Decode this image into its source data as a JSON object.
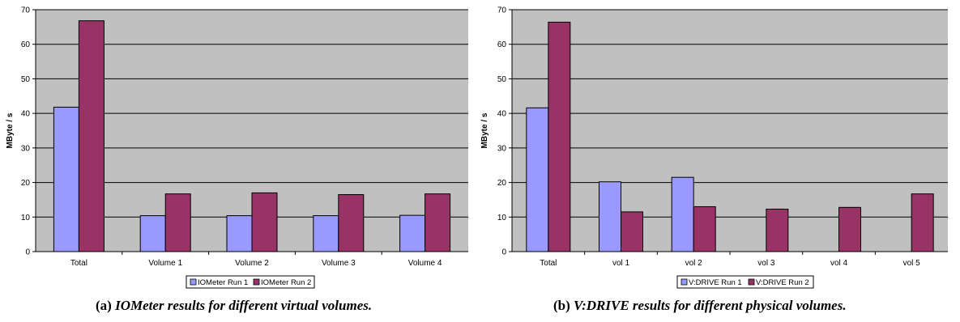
{
  "colors": {
    "plot_bg": "#c0c0c0",
    "run1": "#9999ff",
    "run2": "#993366",
    "grid": "#000000"
  },
  "captions": [
    {
      "label": "(a)",
      "text": "IOMeter results for different virtual volumes."
    },
    {
      "label": "(b)",
      "text": "V:DRIVE results for different physical volumes."
    }
  ],
  "chart_data": [
    {
      "type": "bar",
      "ylabel": "MByte / s",
      "ylim": [
        0,
        70
      ],
      "yticks": [
        0,
        10,
        20,
        30,
        40,
        50,
        60,
        70
      ],
      "grid": true,
      "legend_position": "bottom",
      "categories": [
        "Total",
        "Volume 1",
        "Volume 2",
        "Volume 3",
        "Volume 4"
      ],
      "series": [
        {
          "name": "IOMeter Run 1",
          "values": [
            41.8,
            10.4,
            10.4,
            10.4,
            10.5
          ]
        },
        {
          "name": "IOMeter Run 2",
          "values": [
            66.8,
            16.7,
            17.0,
            16.5,
            16.7
          ]
        }
      ]
    },
    {
      "type": "bar",
      "ylabel": "MByte / s",
      "ylim": [
        0,
        70
      ],
      "yticks": [
        0,
        10,
        20,
        30,
        40,
        50,
        60,
        70
      ],
      "grid": true,
      "legend_position": "bottom",
      "categories": [
        "Total",
        "vol 1",
        "vol 2",
        "vol 3",
        "vol 4",
        "vol 5"
      ],
      "series": [
        {
          "name": "V:DRIVE Run 1",
          "values": [
            41.6,
            20.2,
            21.5,
            0,
            0,
            0
          ]
        },
        {
          "name": "V:DRIVE Run 2",
          "values": [
            66.4,
            11.5,
            13.0,
            12.3,
            12.8,
            16.7
          ]
        }
      ]
    }
  ]
}
